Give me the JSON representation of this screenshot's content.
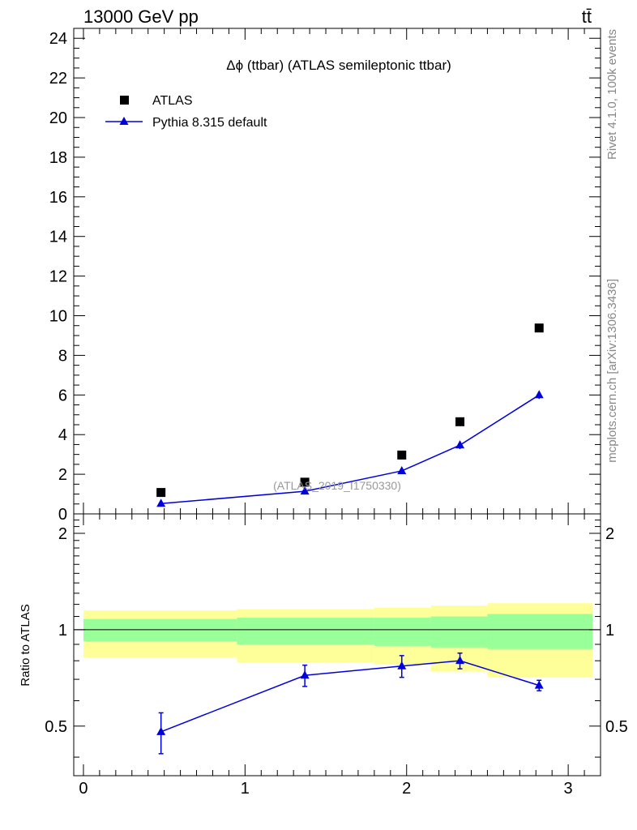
{
  "header": {
    "energy_label": "13000 GeV pp",
    "process_label": "tt̄"
  },
  "side_labels": {
    "rivet": "Rivet 4.1.0,  100k events",
    "mcplots": "mcplots.cern.ch [arXiv:1306.3436]"
  },
  "chart_data": [
    {
      "type": "scatter",
      "panel": "main",
      "title": "Δϕ (ttbar) (ATLAS semileptonic ttbar)",
      "watermark": "(ATLAS_2019_I1750330)",
      "xlabel": "",
      "ylabel": "",
      "xlim": [
        -0.06,
        3.2
      ],
      "ylim": [
        0,
        24.5
      ],
      "yticks": [
        0,
        2,
        4,
        6,
        8,
        10,
        12,
        14,
        16,
        18,
        20,
        22,
        24
      ],
      "ytick_labels": [
        "0",
        "2",
        "4",
        "6",
        "8",
        "10",
        "12",
        "14",
        "16",
        "18",
        "20",
        "22",
        "24"
      ],
      "legend_position": "top-left",
      "series": [
        {
          "name": "ATLAS",
          "style": "square-markers",
          "color": "#000000",
          "x": [
            0.48,
            1.37,
            1.97,
            2.33,
            2.82
          ],
          "y": [
            1.08,
            1.6,
            2.97,
            4.65,
            9.38
          ]
        },
        {
          "name": "Pythia 8.315 default",
          "style": "triangle-line",
          "color": "#0000dd",
          "x": [
            0.48,
            1.37,
            1.97,
            2.33,
            2.82
          ],
          "y": [
            0.52,
            1.14,
            2.17,
            3.47,
            6.0
          ],
          "err": [
            0.04,
            0.08,
            0.12,
            0.2,
            0.2
          ]
        }
      ]
    },
    {
      "type": "line",
      "panel": "ratio",
      "ylabel": "Ratio to ATLAS",
      "xlim": [
        -0.06,
        3.2
      ],
      "ylim": [
        0.35,
        2.3
      ],
      "xticks": [
        0,
        1,
        2,
        3
      ],
      "xtick_labels": [
        "0",
        "1",
        "2",
        "3"
      ],
      "yticks": [
        0.5,
        1,
        2
      ],
      "ytick_labels": [
        "0.5",
        "1",
        "2"
      ],
      "bins": [
        {
          "x0": 0.0,
          "x1": 0.95,
          "inner": [
            0.92,
            1.08
          ],
          "outer": [
            0.82,
            1.15
          ]
        },
        {
          "x0": 0.95,
          "x1": 1.8,
          "inner": [
            0.9,
            1.09
          ],
          "outer": [
            0.79,
            1.16
          ]
        },
        {
          "x0": 1.8,
          "x1": 2.15,
          "inner": [
            0.89,
            1.09
          ],
          "outer": [
            0.78,
            1.17
          ]
        },
        {
          "x0": 2.15,
          "x1": 2.5,
          "inner": [
            0.88,
            1.1
          ],
          "outer": [
            0.74,
            1.19
          ]
        },
        {
          "x0": 2.5,
          "x1": 3.15,
          "inner": [
            0.87,
            1.12
          ],
          "outer": [
            0.71,
            1.21
          ]
        }
      ],
      "band_colors": {
        "inner": "#99ff99",
        "outer": "#ffff99"
      },
      "series": [
        {
          "name": "Pythia 8.315 default",
          "color": "#0000dd",
          "x": [
            0.48,
            1.37,
            1.97,
            2.33,
            2.82
          ],
          "y": [
            0.48,
            0.72,
            0.77,
            0.8,
            0.67
          ],
          "err": [
            0.07,
            0.055,
            0.06,
            0.045,
            0.025
          ]
        }
      ]
    }
  ]
}
